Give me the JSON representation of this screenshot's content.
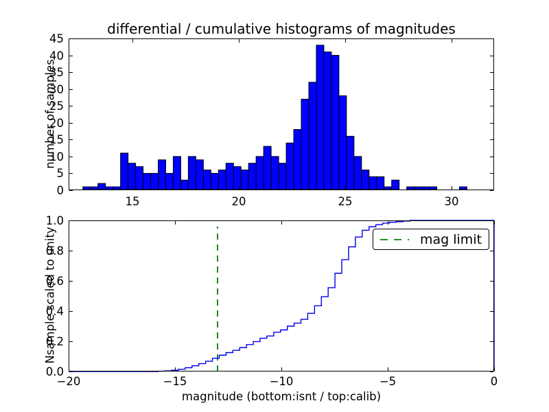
{
  "figure": {
    "title": "differential / cumulative histograms of magnitudes",
    "background": "#ffffff"
  },
  "colors": {
    "bar_fill": "#0000ff",
    "bar_edge": "#000000",
    "cumulative_line": "#0000ee",
    "mag_limit_green": "#008000",
    "axis": "#000000",
    "text": "#000000"
  },
  "top_plot": {
    "ylabel": "number of samples",
    "xlim": [
      12,
      32
    ],
    "ylim": [
      0,
      45
    ],
    "xtick_values": [
      15,
      20,
      25,
      30
    ],
    "xtick_labels": [
      "15",
      "20",
      "25",
      "30"
    ],
    "ytick_values": [
      0,
      5,
      10,
      15,
      20,
      25,
      30,
      35,
      40,
      45
    ],
    "ytick_labels": [
      "0",
      "5",
      "10",
      "15",
      "20",
      "25",
      "30",
      "35",
      "40",
      "45"
    ]
  },
  "bottom_plot": {
    "ylabel": "Nsample scaled to unity",
    "xlabel": "magnitude (bottom:isnt / top:calib)",
    "xlim": [
      -20,
      0
    ],
    "ylim": [
      0.0,
      1.0
    ],
    "xtick_values": [
      -20,
      -15,
      -10,
      -5,
      0
    ],
    "xtick_labels": [
      "−20",
      "−15",
      "−10",
      "−5",
      "0"
    ],
    "ytick_values": [
      0,
      0.2,
      0.4,
      0.6,
      0.8,
      1.0
    ],
    "ytick_labels": [
      "0.0",
      "0.2",
      "0.4",
      "0.6",
      "0.8",
      "1.0"
    ],
    "legend_label": "mag limit",
    "mag_limit_x": -13
  },
  "chart_data": [
    {
      "type": "bar",
      "axes": "top",
      "title": "differential / cumulative histograms of magnitudes",
      "xlabel": "",
      "ylabel": "number of samples",
      "xlim": [
        12,
        32
      ],
      "ylim": [
        0,
        45
      ],
      "grid": false,
      "bin_start": 12.67,
      "bin_width": 0.354,
      "counts": [
        1,
        1,
        2,
        1,
        1,
        11,
        8,
        7,
        5,
        5,
        9,
        5,
        10,
        3,
        10,
        9,
        6,
        5,
        6,
        8,
        7,
        6,
        8,
        10,
        13,
        10,
        8,
        14,
        18,
        27,
        32,
        43,
        41,
        40,
        28,
        16,
        10,
        6,
        4,
        4,
        1,
        3,
        0,
        1,
        1,
        1,
        1,
        0,
        0,
        0,
        1
      ]
    },
    {
      "type": "line",
      "axes": "bottom",
      "name": "cumulative histogram (step)",
      "xlabel": "magnitude (bottom:isnt / top:calib)",
      "ylabel": "Nsample scaled to unity",
      "xlim": [
        -20,
        0
      ],
      "ylim": [
        0.0,
        1.0
      ],
      "grid": false,
      "legend_position": "upper right",
      "steps": [
        [
          -15.8,
          0.002
        ],
        [
          -15.48,
          0.004
        ],
        [
          -15.16,
          0.008
        ],
        [
          -14.84,
          0.015
        ],
        [
          -14.52,
          0.025
        ],
        [
          -14.2,
          0.038
        ],
        [
          -13.88,
          0.052
        ],
        [
          -13.56,
          0.068
        ],
        [
          -13.24,
          0.088
        ],
        [
          -12.92,
          0.108
        ],
        [
          -12.6,
          0.125
        ],
        [
          -12.28,
          0.14
        ],
        [
          -11.96,
          0.158
        ],
        [
          -11.64,
          0.178
        ],
        [
          -11.32,
          0.198
        ],
        [
          -11.0,
          0.22
        ],
        [
          -10.68,
          0.235
        ],
        [
          -10.36,
          0.26
        ],
        [
          -10.04,
          0.275
        ],
        [
          -9.72,
          0.3
        ],
        [
          -9.4,
          0.32
        ],
        [
          -9.08,
          0.345
        ],
        [
          -8.76,
          0.385
        ],
        [
          -8.44,
          0.435
        ],
        [
          -8.12,
          0.495
        ],
        [
          -7.8,
          0.555
        ],
        [
          -7.48,
          0.65
        ],
        [
          -7.16,
          0.74
        ],
        [
          -6.84,
          0.825
        ],
        [
          -6.52,
          0.89
        ],
        [
          -6.2,
          0.935
        ],
        [
          -5.88,
          0.958
        ],
        [
          -5.56,
          0.972
        ],
        [
          -5.24,
          0.982
        ],
        [
          -4.92,
          0.988
        ],
        [
          -4.6,
          0.992
        ],
        [
          -4.28,
          0.996
        ],
        [
          -3.96,
          1.0
        ]
      ],
      "flat_to_x": 0,
      "annotations": {
        "mag_limit_vline": {
          "x": -13,
          "label": "mag limit",
          "style": "dashed",
          "color": "#008000",
          "y_span": [
            0,
            0.96
          ]
        }
      }
    }
  ]
}
